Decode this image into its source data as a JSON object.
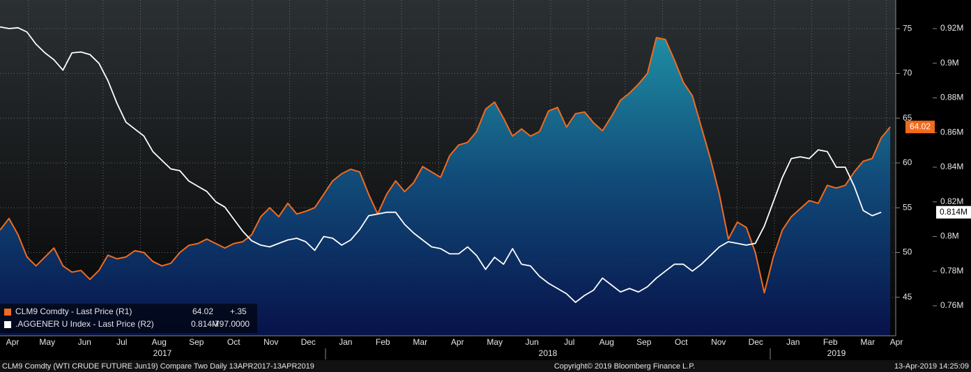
{
  "chart_data": {
    "type": "line",
    "series": [
      {
        "name": "CLM9 Comdty - Last Price (R1)",
        "color": "#f26b1d",
        "axis": "y",
        "fill": true,
        "change": "+.35",
        "values": [
          52.5,
          53.8,
          52.0,
          49.5,
          48.5,
          49.5,
          50.5,
          48.5,
          47.8,
          48.0,
          47.0,
          48.0,
          49.7,
          49.3,
          49.5,
          50.2,
          50.0,
          49.0,
          48.5,
          48.8,
          50.0,
          50.8,
          51.0,
          51.5,
          51.0,
          50.5,
          51.0,
          51.2,
          52.0,
          54.0,
          55.0,
          54.0,
          55.5,
          54.3,
          54.6,
          55.0,
          56.5,
          58.0,
          58.8,
          59.3,
          59.0,
          56.5,
          54.3,
          56.5,
          58.0,
          56.8,
          57.8,
          59.6,
          59.0,
          58.4,
          60.8,
          62.0,
          62.3,
          63.5,
          66.0,
          66.8,
          65.0,
          63.0,
          63.8,
          63.0,
          63.5,
          65.8,
          66.2,
          64.0,
          65.5,
          65.7,
          64.5,
          63.6,
          65.2,
          67.0,
          67.8,
          68.8,
          70.0,
          74.0,
          73.8,
          71.5,
          69.0,
          67.5,
          64.0,
          60.5,
          56.5,
          51.5,
          53.4,
          52.8,
          50.0,
          45.5,
          49.5,
          52.5,
          54.0,
          54.9,
          55.8,
          55.5,
          57.5,
          57.2,
          57.5,
          59.0,
          60.2,
          60.5,
          62.8,
          64.02
        ]
      },
      {
        "name": ".AGGENER U Index - Last Price (R2)",
        "color": "#ffffff",
        "axis": "y2",
        "last_value_label": "0.814M",
        "change": "-797.0000",
        "values": [
          921000,
          920000,
          920500,
          918000,
          911000,
          906000,
          902000,
          896000,
          906000,
          906500,
          905000,
          900000,
          890000,
          877000,
          866000,
          862000,
          858000,
          849000,
          844000,
          839000,
          838000,
          832000,
          829000,
          826000,
          820000,
          817000,
          810000,
          803000,
          797500,
          795000,
          794000,
          796000,
          798000,
          799000,
          797000,
          792000,
          800000,
          799000,
          795000,
          798000,
          804000,
          812000,
          813000,
          814000,
          814000,
          807000,
          802000,
          798000,
          794000,
          793000,
          790000,
          790000,
          794000,
          789000,
          781000,
          788000,
          784000,
          793000,
          784000,
          783000,
          777000,
          773000,
          770000,
          767000,
          762000,
          766000,
          769000,
          776000,
          772000,
          768000,
          770000,
          768000,
          771000,
          776000,
          780000,
          784000,
          784000,
          780000,
          784000,
          789000,
          794000,
          797000,
          796000,
          795000,
          796000,
          806000,
          820000,
          834000,
          845000,
          846000,
          845000,
          850000,
          849000,
          840000,
          840000,
          829000,
          815000,
          812000,
          814000,
          null
        ]
      }
    ],
    "ylim": [
      40.7,
      78.2
    ],
    "yticks": [
      45,
      50,
      55,
      60,
      65,
      70,
      75
    ],
    "y2lim": [
      742700,
      936500
    ],
    "y2ticks": [
      {
        "value": 760000,
        "label": "0.76M"
      },
      {
        "value": 780000,
        "label": "0.78M"
      },
      {
        "value": 800000,
        "label": "0.8M"
      },
      {
        "value": 820000,
        "label": "0.82M"
      },
      {
        "value": 840000,
        "label": "0.84M"
      },
      {
        "value": 860000,
        "label": "0.86M"
      },
      {
        "value": 880000,
        "label": "0.88M"
      },
      {
        "value": 900000,
        "label": "0.9M"
      },
      {
        "value": 920000,
        "label": "0.92M"
      }
    ],
    "grid": true,
    "legend": "lower left",
    "month_labels": [
      "Apr",
      "May",
      "Jun",
      "Jul",
      "Aug",
      "Sep",
      "Oct",
      "Nov",
      "Dec",
      "Jan",
      "Feb",
      "Mar",
      "Apr",
      "May",
      "Jun",
      "Jul",
      "Aug",
      "Sep",
      "Oct",
      "Nov",
      "Dec",
      "Jan",
      "Feb",
      "Mar",
      "Apr"
    ],
    "year_labels": [
      "2017",
      "2018",
      "2019"
    ],
    "footer_left": "CLM9 Comdty (WTI CRUDE FUTURE  Jun19) Compare Two  Daily 13APR2017-13APR2019",
    "copyright": "Copyright© 2019 Bloomberg Finance L.P.",
    "timestamp": "13-Apr-2019 14:25:09"
  }
}
